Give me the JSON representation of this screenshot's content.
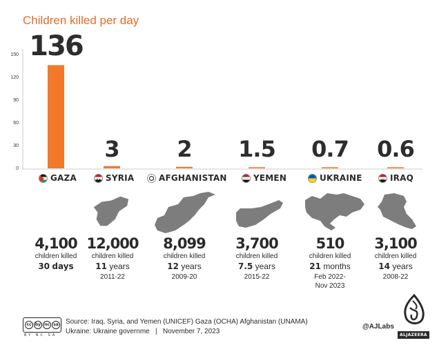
{
  "title": "Children killed per day",
  "chart_data": {
    "type": "bar",
    "title": "Children killed per day",
    "categories": [
      "GAZA",
      "SYRIA",
      "AFGHANISTAN",
      "YEMEN",
      "UKRAINE",
      "IRAQ"
    ],
    "values": [
      136,
      3,
      2,
      1.5,
      0.7,
      0.6
    ],
    "value_labels": [
      "136",
      "3",
      "2",
      "1.5",
      "0.7",
      "0.6"
    ],
    "ylim": [
      0,
      150
    ],
    "yticks": [
      0,
      30,
      60,
      90,
      120,
      150
    ],
    "ytick_labels": [
      "0",
      "30",
      "60",
      "90",
      "120",
      "150"
    ],
    "bar_color": "#f07a2a",
    "grid": false
  },
  "countries": [
    {
      "name": "GAZA",
      "flag": "palestine-flag-icon",
      "map": "gaza-map-icon",
      "killed": "4,100",
      "killed_label": "children killed",
      "duration_num": "30",
      "duration_unit": "days",
      "period": ""
    },
    {
      "name": "SYRIA",
      "flag": "syria-flag-icon",
      "map": "syria-map-icon",
      "killed": "12,000",
      "killed_label": "children killed",
      "duration_num": "11",
      "duration_unit": "years",
      "period": "2011-22"
    },
    {
      "name": "AFGHANISTAN",
      "flag": "afghanistan-flag-icon",
      "map": "afghanistan-map-icon",
      "killed": "8,099",
      "killed_label": "children killed",
      "duration_num": "12",
      "duration_unit": "years",
      "period": "2009-20"
    },
    {
      "name": "YEMEN",
      "flag": "yemen-flag-icon",
      "map": "yemen-map-icon",
      "killed": "3,700",
      "killed_label": "children killed",
      "duration_num": "7.5",
      "duration_unit": "years",
      "period": "2015-22"
    },
    {
      "name": "UKRAINE",
      "flag": "ukraine-flag-icon",
      "map": "ukraine-map-icon",
      "killed": "510",
      "killed_label": "children killed",
      "duration_num": "21",
      "duration_unit": "months",
      "period": "Feb 2022-\nNov 2023"
    },
    {
      "name": "IRAQ",
      "flag": "iraq-flag-icon",
      "map": "iraq-map-icon",
      "killed": "3,100",
      "killed_label": "children killed",
      "duration_num": "14",
      "duration_unit": "years",
      "period": "2008-22"
    }
  ],
  "footer": {
    "license_icons": [
      "cc",
      "by",
      "nc",
      "sa"
    ],
    "license_sub": "BY NC SA",
    "source_line1": "Source: Iraq, Syria, and Yemen (UNICEF) Gaza (OCHA) Afghanistan (UNAMA)",
    "source_line2": "Ukraine: Ukraine governme   |   November 7, 2023",
    "handle": "@AJLabs",
    "brand": "ALJAZEERA"
  }
}
